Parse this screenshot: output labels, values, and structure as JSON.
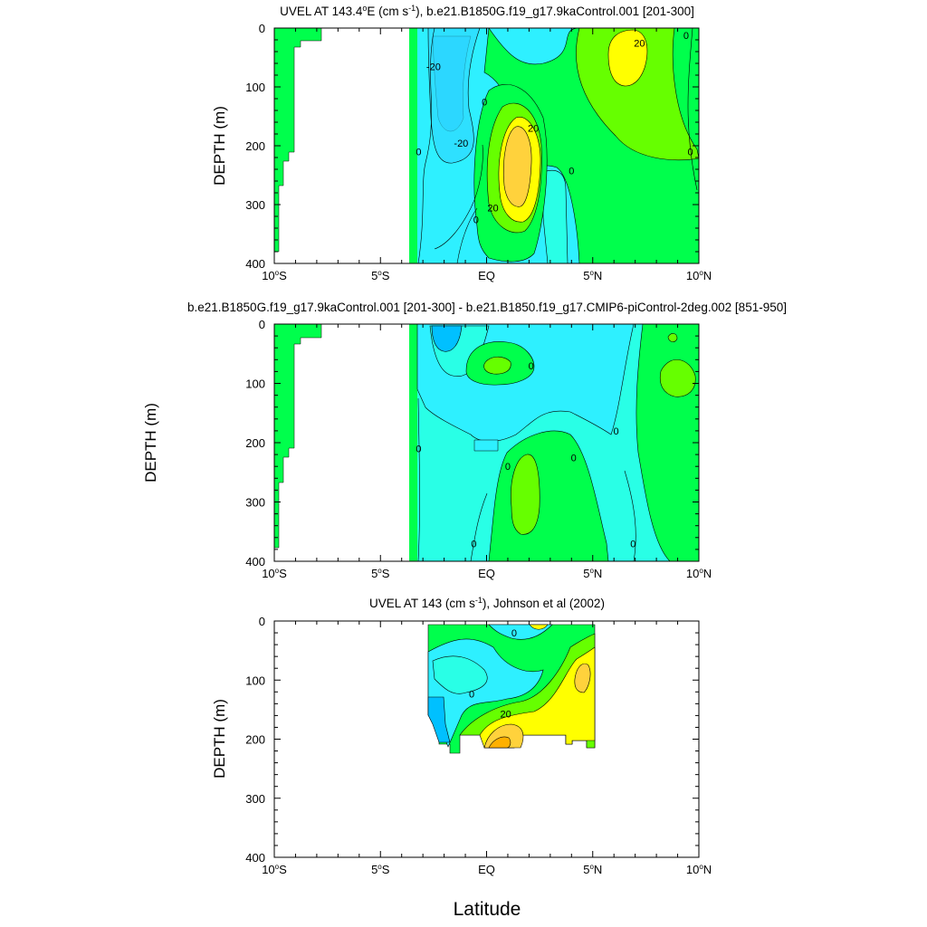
{
  "colors": {
    "cyan": "#2ef0ff",
    "light_cyan": "#29ffe6",
    "aqua": "#00ffff",
    "green": "#00ff4c",
    "light_green": "#66ff00",
    "blue_cyan": "#00c0ff",
    "yellow": "#ffff00",
    "orange_yellow": "#ffd23c",
    "orange": "#ffb000"
  },
  "figure": {
    "xlabel": "Latitude"
  },
  "chart_data": [
    {
      "type": "heatmap",
      "title": "UVEL AT 143.4°E (cm s⁻¹), b.e21.B1850G.f19_g17.9kaControl.001 [201-300]",
      "title_parts": [
        "UVEL AT 143.4",
        "o",
        "E (cm s",
        "-1",
        "), b.e21.B1850G.f19_g17.9kaControl.001 [201-300]"
      ],
      "ylabel": "DEPTH (m)",
      "xlabel": "",
      "xlim": [
        -10,
        10
      ],
      "ylim": [
        400,
        0
      ],
      "xticks": [
        {
          "v": -10,
          "t": "10°S",
          "n": "10",
          "s": "S"
        },
        {
          "v": -5,
          "t": "5°S",
          "n": "5",
          "s": "S"
        },
        {
          "v": 0,
          "t": "EQ"
        },
        {
          "v": 5,
          "t": "5°N",
          "n": "5",
          "s": "N"
        },
        {
          "v": 10,
          "t": "10°N",
          "n": "10",
          "s": "N"
        }
      ],
      "yticks": [
        0,
        100,
        200,
        300,
        400
      ],
      "contour_labels": [
        {
          "x": -2.5,
          "y": 65,
          "text": "-20"
        },
        {
          "x": -1.2,
          "y": 195,
          "text": "-20"
        },
        {
          "x": 2.2,
          "y": 170,
          "text": "20"
        },
        {
          "x": 0.3,
          "y": 305,
          "text": "20"
        },
        {
          "x": 7.2,
          "y": 25,
          "text": "20"
        },
        {
          "x": -3.2,
          "y": 210,
          "text": "0"
        },
        {
          "x": -0.1,
          "y": 125,
          "text": "0"
        },
        {
          "x": -0.5,
          "y": 325,
          "text": "0"
        },
        {
          "x": 4.0,
          "y": 242,
          "text": "0"
        },
        {
          "x": 9.6,
          "y": 210,
          "text": "0"
        },
        {
          "x": 9.4,
          "y": 12,
          "text": "0"
        }
      ]
    },
    {
      "type": "heatmap",
      "title": "b.e21.B1850G.f19_g17.9kaControl.001 [201-300] - b.e21.B1850.f19_g17.CMIP6-piControl-2deg.002 [851-950]",
      "ylabel": "DEPTH (m)",
      "xlabel": "",
      "xlim": [
        -10,
        10
      ],
      "ylim": [
        400,
        0
      ],
      "xticks": [
        {
          "v": -10,
          "t": "10°S",
          "n": "10",
          "s": "S"
        },
        {
          "v": -5,
          "t": "5°S",
          "n": "5",
          "s": "S"
        },
        {
          "v": 0,
          "t": "EQ"
        },
        {
          "v": 5,
          "t": "5°N",
          "n": "5",
          "s": "N"
        },
        {
          "v": 10,
          "t": "10°N",
          "n": "10",
          "s": "N"
        }
      ],
      "yticks": [
        0,
        100,
        200,
        300,
        400
      ],
      "contour_labels": [
        {
          "x": -3.2,
          "y": 210,
          "text": "0"
        },
        {
          "x": 2.1,
          "y": 70,
          "text": "0"
        },
        {
          "x": 1.0,
          "y": 240,
          "text": "0"
        },
        {
          "x": 4.1,
          "y": 225,
          "text": "0"
        },
        {
          "x": 6.1,
          "y": 180,
          "text": "0"
        },
        {
          "x": -0.6,
          "y": 370,
          "text": "0"
        },
        {
          "x": 6.9,
          "y": 370,
          "text": "0"
        }
      ]
    },
    {
      "type": "heatmap",
      "title": "UVEL AT 143 (cm s⁻¹), Johnson et al (2002)",
      "title_parts": [
        "UVEL AT 143 (cm s",
        "-1",
        "), Johnson et al (2002)"
      ],
      "ylabel": "DEPTH (m)",
      "xlabel": "Latitude",
      "xlim": [
        -10,
        10
      ],
      "ylim": [
        400,
        0
      ],
      "xticks": [
        {
          "v": -10,
          "t": "10°S",
          "n": "10",
          "s": "S"
        },
        {
          "v": -5,
          "t": "5°S",
          "n": "5",
          "s": "S"
        },
        {
          "v": 0,
          "t": "EQ"
        },
        {
          "v": 5,
          "t": "5°N",
          "n": "5",
          "s": "N"
        },
        {
          "v": 10,
          "t": "10°N",
          "n": "10",
          "s": "N"
        }
      ],
      "yticks": [
        0,
        100,
        200,
        300,
        400
      ],
      "contour_labels": [
        {
          "x": 0.9,
          "y": 157,
          "text": "20"
        },
        {
          "x": 1.3,
          "y": 20,
          "text": "0"
        },
        {
          "x": -0.7,
          "y": 123,
          "text": "0"
        }
      ]
    }
  ]
}
